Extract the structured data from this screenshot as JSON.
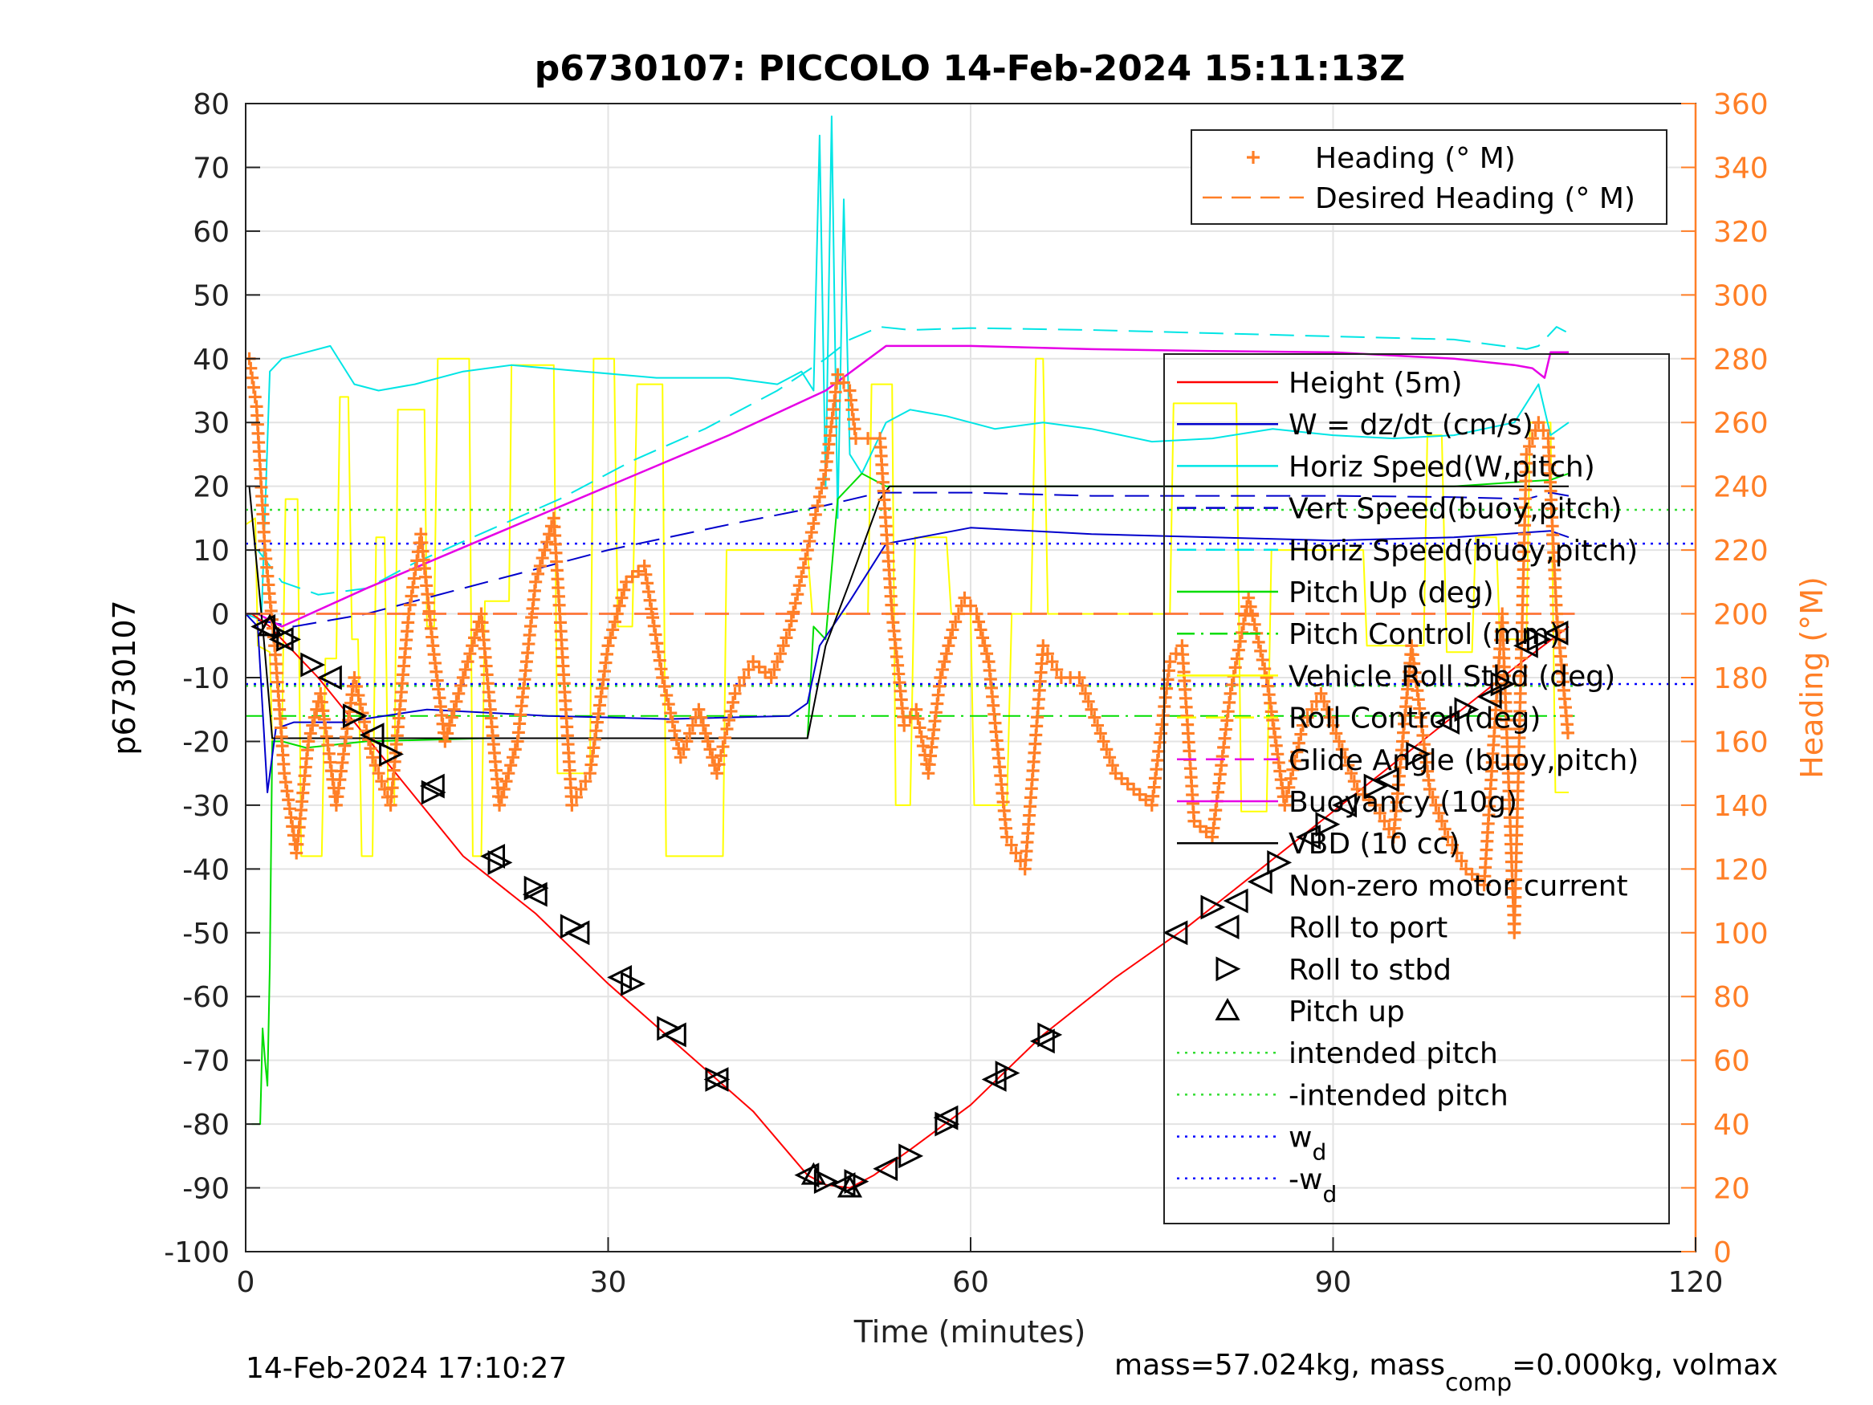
{
  "chart_data": {
    "type": "line",
    "title": "p6730107: PICCOLO 14-Feb-2024 15:11:13Z",
    "xlabel": "Time (minutes)",
    "ylabel": "p6730107",
    "y2label": "Heading (°M)",
    "xlim": [
      0,
      120
    ],
    "ylim": [
      -100,
      80
    ],
    "y2lim": [
      0,
      360
    ],
    "xticks": [
      0,
      30,
      60,
      90,
      120
    ],
    "yticks": [
      -100,
      -90,
      -80,
      -70,
      -60,
      -50,
      -40,
      -30,
      -20,
      -10,
      0,
      10,
      20,
      30,
      40,
      50,
      60,
      70,
      80
    ],
    "y2ticks": [
      0,
      20,
      40,
      60,
      80,
      100,
      120,
      140,
      160,
      180,
      200,
      220,
      240,
      260,
      280,
      300,
      320,
      340,
      360
    ],
    "grid": true,
    "footer_left": "14-Feb-2024 17:10:27",
    "footer_right_pre": "mass=57.024kg, mass",
    "footer_right_sub": "comp",
    "footer_right_post": "=0.000kg, volmax",
    "colors": {
      "height": "#ff0000",
      "w": "#0000cc",
      "horiz_speed": "#00e5e5",
      "pitch": "#00dd00",
      "roll": "#ffff00",
      "glide": "#e600e6",
      "vbd": "#000000",
      "heading": "#ff7f27",
      "intended": "#33dd33",
      "wd": "#0000ff"
    },
    "legend_heading": [
      {
        "label": "Heading (° M)",
        "style": "plus",
        "color": "#ff7f27"
      },
      {
        "label": "Desired Heading (° M)",
        "style": "dash",
        "color": "#ff7f27"
      }
    ],
    "legend_main": [
      {
        "label": "Height (5m)",
        "style": "solid",
        "color": "#ff0000"
      },
      {
        "label": "W = dz/dt (cm/s)",
        "style": "solid",
        "color": "#0000cc"
      },
      {
        "label": "Horiz Speed(W,pitch)",
        "style": "solid",
        "color": "#00e5e5"
      },
      {
        "label": "Vert Speed(buoy,pitch)",
        "style": "dash",
        "color": "#0000cc"
      },
      {
        "label": "Horiz Speed(buoy,pitch)",
        "style": "dash",
        "color": "#00e5e5"
      },
      {
        "label": "Pitch Up (deg)",
        "style": "solid",
        "color": "#00dd00"
      },
      {
        "label": "Pitch Control (mm)",
        "style": "dashdot",
        "color": "#00dd00"
      },
      {
        "label": "Vehicle Roll Stbd (deg)",
        "style": "solid",
        "color": "#ffff00"
      },
      {
        "label": "Roll Control (deg)",
        "style": "dash",
        "color": "#ffff00"
      },
      {
        "label": "Glide Angle (buoy,pitch)",
        "style": "dash",
        "color": "#e600e6"
      },
      {
        "label": "Buoyancy (10g)",
        "style": "solid",
        "color": "#e600e6"
      },
      {
        "label": "VBD (10 cc)",
        "style": "solid",
        "color": "#000000"
      },
      {
        "label": "Non-zero motor current",
        "style": "none",
        "color": "#000000"
      },
      {
        "label": "Roll to port",
        "style": "tri-left",
        "color": "#000000"
      },
      {
        "label": "Roll to stbd",
        "style": "tri-right",
        "color": "#000000"
      },
      {
        "label": "Pitch up",
        "style": "tri-up",
        "color": "#000000"
      },
      {
        "label": "intended pitch",
        "style": "dot",
        "color": "#33dd33"
      },
      {
        "label": "-intended pitch",
        "style": "dot",
        "color": "#33dd33"
      },
      {
        "label": "w",
        "sub": "d",
        "style": "dot",
        "color": "#0000ff"
      },
      {
        "label": "-w",
        "sub": "d",
        "style": "dot",
        "color": "#0000ff"
      }
    ],
    "series": {
      "height": {
        "x": [
          0.5,
          2,
          6,
          12,
          18,
          24,
          30,
          36,
          42,
          46.5,
          48,
          50,
          52,
          55,
          60,
          66,
          72,
          78,
          84,
          90,
          96,
          102,
          106,
          109.5
        ],
        "y": [
          0,
          -2,
          -10,
          -24,
          -38,
          -47,
          -58,
          -68,
          -78,
          -88,
          -89.5,
          -90,
          -88,
          -84,
          -77,
          -66,
          -57,
          -49,
          -40,
          -31,
          -22,
          -13,
          -7,
          -2
        ]
      },
      "w": {
        "x": [
          0,
          1,
          1.8,
          2.5,
          4,
          8,
          15,
          25,
          35,
          45,
          46.5,
          47.5,
          50,
          53,
          60,
          70,
          80,
          90,
          100,
          108,
          109.5
        ],
        "y": [
          0,
          -2,
          -28,
          -18,
          -17,
          -17,
          -15,
          -16,
          -16.5,
          -16,
          -14,
          -5,
          2,
          11,
          13.5,
          12.5,
          12,
          11.5,
          12,
          13,
          12
        ]
      },
      "horiz_speed": {
        "x": [
          0,
          1.3,
          2,
          3,
          5,
          7,
          9,
          11,
          14,
          18,
          22,
          28,
          34,
          40,
          44,
          46,
          47,
          47.5,
          48,
          48.5,
          49,
          49.5,
          50,
          51,
          52,
          53,
          55,
          58,
          62,
          66,
          70,
          75,
          80,
          85,
          90,
          95,
          100,
          105,
          107,
          108,
          109.5
        ],
        "y": [
          0,
          -1,
          38,
          40,
          41,
          42,
          36,
          35,
          36,
          38,
          39,
          38,
          37,
          37,
          36,
          38,
          35,
          75,
          20,
          78,
          15,
          65,
          25,
          22,
          26,
          30,
          32,
          31,
          29,
          30,
          29,
          27,
          27.5,
          29,
          28,
          27.5,
          28,
          30,
          36,
          28,
          30
        ]
      },
      "horiz_speed_model": {
        "x": [
          1,
          3,
          6,
          10,
          14,
          20,
          26,
          32,
          38,
          44,
          48,
          50,
          52.5,
          55,
          60,
          70,
          80,
          90,
          100,
          106,
          107,
          108.5,
          109.5
        ],
        "y": [
          10,
          5,
          3,
          4,
          8,
          13,
          18,
          24,
          29,
          35,
          40,
          43,
          45,
          44.5,
          44.8,
          44.5,
          44,
          43.5,
          43,
          41.5,
          42,
          45,
          44
        ]
      },
      "vert_speed_model": {
        "x": [
          1,
          4,
          10,
          20,
          30,
          40,
          48,
          52.5,
          60,
          70,
          80,
          90,
          100,
          106,
          108,
          109.5
        ],
        "y": [
          -1,
          -2,
          0,
          5,
          10,
          14,
          17,
          19,
          19,
          18.5,
          18.5,
          18.5,
          18.3,
          18,
          19,
          18.5
        ]
      },
      "pitch": {
        "x": [
          0.5,
          1.2,
          1.4,
          1.6,
          1.8,
          2,
          2.2,
          3,
          5,
          10,
          20,
          30,
          40,
          46.5,
          47,
          48,
          49,
          50,
          51,
          52,
          53,
          60,
          70,
          80,
          90,
          100,
          108,
          109.5
        ],
        "y": [
          -80,
          -80,
          -65,
          -70,
          -74,
          -55,
          -20,
          -20,
          -21,
          -20,
          -19.5,
          -19.5,
          -19.5,
          -19.5,
          -2,
          -4,
          18,
          20,
          22,
          21,
          20,
          20,
          20,
          20,
          20,
          20,
          21,
          22
        ]
      },
      "pitch_control": {
        "x": [
          0,
          110
        ],
        "y": [
          -16,
          -16
        ]
      },
      "roll": {
        "x": [
          0,
          0.8,
          1.0,
          2.0,
          2.2,
          3.0,
          3.3,
          4.3,
          4.6,
          6.3,
          6.6,
          7.5,
          7.8,
          8.5,
          8.8,
          9.3,
          9.6,
          10.5,
          10.8,
          11.5,
          11.8,
          12.3,
          12.6,
          14.8,
          15.0,
          15.6,
          15.9,
          18.5,
          18.8,
          19.5,
          19.8,
          21.8,
          22.0,
          25.5,
          25.8,
          28.5,
          28.8,
          30.5,
          30.8,
          32.0,
          32.4,
          34.5,
          34.8,
          39.5,
          39.8,
          46.5,
          46.9,
          51.5,
          51.8,
          53.5,
          53.8,
          55.0,
          55.4,
          58.0,
          58.4,
          60.0,
          60.3,
          63.0,
          63.4,
          65.0,
          65.4,
          66.0,
          66.4,
          76.5,
          76.8,
          82.0,
          82.4,
          84.5,
          84.9,
          92.5,
          92.8,
          97.5,
          97.8,
          99.0,
          99.4,
          101.5,
          101.8,
          103.5,
          103.8,
          106.0,
          106.3,
          108.0,
          108.4,
          109.5
        ],
        "y": [
          14,
          15,
          -5,
          -6,
          -20,
          -20,
          18,
          18,
          -38,
          -38,
          -7,
          -7,
          34,
          34,
          -4,
          -4,
          -38,
          -38,
          12,
          12,
          -30,
          -30,
          32,
          32,
          -2,
          -2,
          40,
          40,
          -38,
          -38,
          2,
          2,
          39,
          39,
          -25,
          -25,
          40,
          40,
          -2,
          -2,
          36,
          36,
          -38,
          -38,
          10,
          10,
          0,
          0,
          36,
          36,
          -30,
          -30,
          12,
          12,
          0,
          0,
          -30,
          -30,
          0,
          0,
          40,
          40,
          0,
          0,
          33,
          33,
          -31,
          -31,
          10,
          10,
          -5,
          -5,
          28,
          28,
          -6,
          -6,
          12,
          12,
          -4,
          -4,
          30,
          30,
          -28,
          -28
        ]
      },
      "glide": {
        "x": [
          1,
          3,
          10,
          20,
          30,
          40,
          48,
          53,
          60,
          70,
          80,
          90,
          100,
          105,
          106.5,
          107.5,
          108,
          109.5
        ],
        "y": [
          0,
          -2,
          4,
          12,
          20,
          28,
          35,
          42,
          42,
          41.5,
          41.2,
          41,
          40,
          39,
          38.5,
          37,
          41,
          41
        ]
      },
      "glide_dash": {
        "x": [
          0,
          110
        ],
        "y": [
          0,
          0
        ]
      },
      "vbd": {
        "x": [
          0.3,
          1.5,
          2.2,
          46.5,
          48,
          50,
          52.5,
          53.3,
          109.5
        ],
        "y": [
          20,
          -4,
          -19.5,
          -19.5,
          -5,
          5,
          18,
          20,
          20
        ]
      },
      "heading": {
        "x": [
          0.3,
          0.9,
          1.6,
          2.4,
          3.2,
          4.2,
          5.2,
          6.2,
          7.5,
          9.0,
          10.5,
          12.0,
          13.5,
          14.5,
          15.5,
          16.5,
          18.0,
          19.5,
          21.0,
          22.5,
          24.0,
          25.5,
          27.0,
          28.5,
          30.0,
          31.5,
          33.0,
          34.5,
          36.0,
          37.5,
          39.0,
          40.5,
          42.0,
          43.5,
          45.0,
          46.5,
          48.0,
          49.0,
          50.0,
          50.5,
          51.5,
          52.5,
          53.5,
          54.5,
          55.5,
          56.5,
          57.5,
          58.5,
          59.5,
          60.5,
          61.5,
          63.0,
          64.5,
          66.0,
          67.5,
          69.0,
          70.5,
          72.0,
          73.5,
          75.0,
          76.5,
          77.5,
          78.5,
          80.0,
          81.5,
          83.0,
          84.5,
          86.0,
          87.5,
          89.0,
          90.5,
          92.0,
          93.5,
          95.0,
          96.5,
          98.0,
          99.5,
          101.0,
          102.5,
          104.0,
          105.0,
          106.0,
          107.0,
          107.8,
          108.5,
          109.5
        ],
        "y": [
          280,
          265,
          220,
          190,
          150,
          125,
          160,
          175,
          140,
          180,
          155,
          140,
          200,
          225,
          190,
          160,
          180,
          200,
          140,
          160,
          210,
          230,
          140,
          150,
          190,
          210,
          215,
          180,
          155,
          170,
          150,
          175,
          185,
          180,
          195,
          220,
          245,
          275,
          270,
          255,
          255,
          255,
          200,
          165,
          170,
          150,
          180,
          195,
          205,
          200,
          185,
          130,
          120,
          190,
          180,
          180,
          165,
          150,
          145,
          140,
          185,
          190,
          135,
          130,
          175,
          205,
          180,
          140,
          165,
          175,
          160,
          145,
          140,
          130,
          190,
          145,
          130,
          120,
          115,
          200,
          100,
          250,
          260,
          255,
          200,
          160
        ]
      },
      "desired_heading": {
        "x": [
          0,
          110
        ],
        "y": [
          200,
          200
        ]
      },
      "intended_pitch": 16.3,
      "w_d": 11,
      "markers_roll_port": {
        "x": [
          1.5,
          3,
          7,
          10.5,
          15.5,
          20.5,
          24,
          27.5,
          31,
          35.5,
          39,
          46.5,
          49.5,
          53,
          58,
          62,
          66,
          77,
          82,
          84,
          88,
          91,
          94.5,
          99.5,
          103,
          106,
          108.5
        ],
        "y": [
          -2,
          -4,
          -10,
          -19,
          -27,
          -38,
          -44,
          -50,
          -57,
          -66,
          -73,
          -88,
          -89.5,
          -87,
          -79,
          -73,
          -67,
          -50,
          -45,
          -42,
          -35,
          -30,
          -26,
          -17,
          -13,
          -5,
          -3
        ]
      },
      "markers_roll_stbd": {
        "x": [
          3.5,
          5.5,
          9,
          12,
          15.5,
          21,
          24,
          27,
          32,
          35,
          39,
          48,
          50.5,
          55,
          58,
          63,
          66.5,
          80,
          85.5,
          89.5,
          93.5,
          97,
          101,
          104,
          107
        ],
        "y": [
          -4,
          -8,
          -16,
          -22,
          -28,
          -39,
          -43,
          -49,
          -58,
          -65,
          -73,
          -89,
          -89,
          -85,
          -80,
          -72,
          -66,
          -46,
          -39,
          -33,
          -27,
          -22,
          -15,
          -11,
          -4
        ]
      },
      "markers_pitch_up": {
        "x": [
          2,
          50,
          47
        ],
        "y": [
          -2,
          -90,
          -88
        ]
      }
    }
  }
}
